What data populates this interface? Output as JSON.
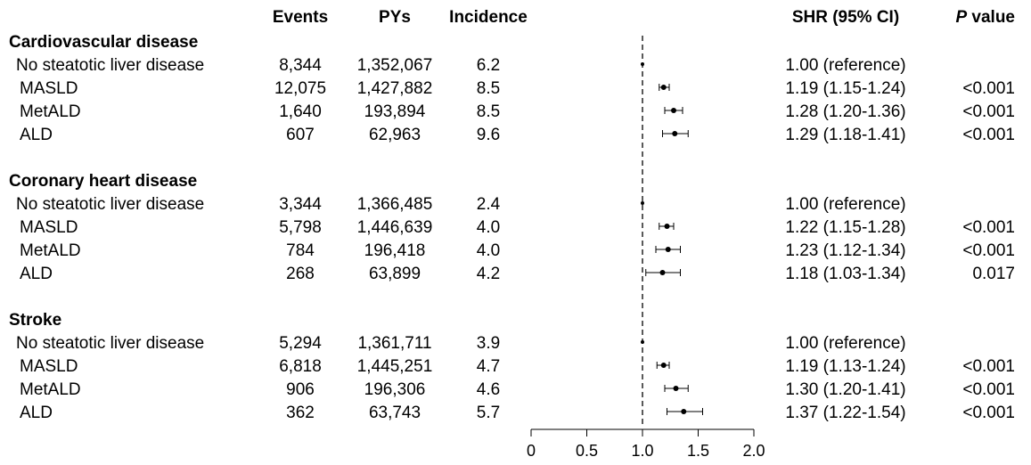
{
  "chart_data": {
    "type": "forest",
    "headers": {
      "events": "Events",
      "pys": "PYs",
      "incidence": "Incidence",
      "shr": "SHR (95% CI)",
      "p_italic": "P",
      "p_rest": " value"
    },
    "x_axis": {
      "ticks": [
        "0",
        "0.5",
        "1.0",
        "1.5",
        "2.0"
      ],
      "tick_values": [
        0,
        0.5,
        1.0,
        1.5,
        2.0
      ],
      "range": [
        0,
        2.0
      ],
      "reference_line": 1.0,
      "reference_style": "dashed"
    },
    "groups": [
      {
        "name": "Cardiovascular disease",
        "rows": [
          {
            "label": "No steatotic liver disease",
            "events": "8,344",
            "pys": "1,352,067",
            "incidence": "6.2",
            "shr_text": "1.00 (reference)",
            "p": "",
            "est": 1.0,
            "lo": 1.0,
            "hi": 1.0
          },
          {
            "label": "MASLD",
            "events": "12,075",
            "pys": "1,427,882",
            "incidence": "8.5",
            "shr_text": "1.19 (1.15-1.24)",
            "p": "<0.001",
            "est": 1.19,
            "lo": 1.15,
            "hi": 1.24
          },
          {
            "label": "MetALD",
            "events": "1,640",
            "pys": "193,894",
            "incidence": "8.5",
            "shr_text": "1.28 (1.20-1.36)",
            "p": "<0.001",
            "est": 1.28,
            "lo": 1.2,
            "hi": 1.36
          },
          {
            "label": "ALD",
            "events": "607",
            "pys": "62,963",
            "incidence": "9.6",
            "shr_text": "1.29 (1.18-1.41)",
            "p": "<0.001",
            "est": 1.29,
            "lo": 1.18,
            "hi": 1.41
          }
        ]
      },
      {
        "name": "Coronary heart disease",
        "rows": [
          {
            "label": "No steatotic liver disease",
            "events": "3,344",
            "pys": "1,366,485",
            "incidence": "2.4",
            "shr_text": "1.00 (reference)",
            "p": "",
            "est": 1.0,
            "lo": 1.0,
            "hi": 1.0
          },
          {
            "label": "MASLD",
            "events": "5,798",
            "pys": "1,446,639",
            "incidence": "4.0",
            "shr_text": "1.22 (1.15-1.28)",
            "p": "<0.001",
            "est": 1.22,
            "lo": 1.15,
            "hi": 1.28
          },
          {
            "label": "MetALD",
            "events": "784",
            "pys": "196,418",
            "incidence": "4.0",
            "shr_text": "1.23 (1.12-1.34)",
            "p": "<0.001",
            "est": 1.23,
            "lo": 1.12,
            "hi": 1.34
          },
          {
            "label": "ALD",
            "events": "268",
            "pys": "63,899",
            "incidence": "4.2",
            "shr_text": "1.18 (1.03-1.34)",
            "p": "0.017",
            "est": 1.18,
            "lo": 1.03,
            "hi": 1.34
          }
        ]
      },
      {
        "name": "Stroke",
        "rows": [
          {
            "label": "No steatotic liver disease",
            "events": "5,294",
            "pys": "1,361,711",
            "incidence": "3.9",
            "shr_text": "1.00 (reference)",
            "p": "",
            "est": 1.0,
            "lo": 1.0,
            "hi": 1.0
          },
          {
            "label": "MASLD",
            "events": "6,818",
            "pys": "1,445,251",
            "incidence": "4.7",
            "shr_text": "1.19 (1.13-1.24)",
            "p": "<0.001",
            "est": 1.19,
            "lo": 1.13,
            "hi": 1.24
          },
          {
            "label": "MetALD",
            "events": "906",
            "pys": "196,306",
            "incidence": "4.6",
            "shr_text": "1.30 (1.20-1.41)",
            "p": "<0.001",
            "est": 1.3,
            "lo": 1.2,
            "hi": 1.41
          },
          {
            "label": "ALD",
            "events": "362",
            "pys": "63,743",
            "incidence": "5.7",
            "shr_text": "1.37 (1.22-1.54)",
            "p": "<0.001",
            "est": 1.37,
            "lo": 1.22,
            "hi": 1.54
          }
        ]
      }
    ]
  }
}
